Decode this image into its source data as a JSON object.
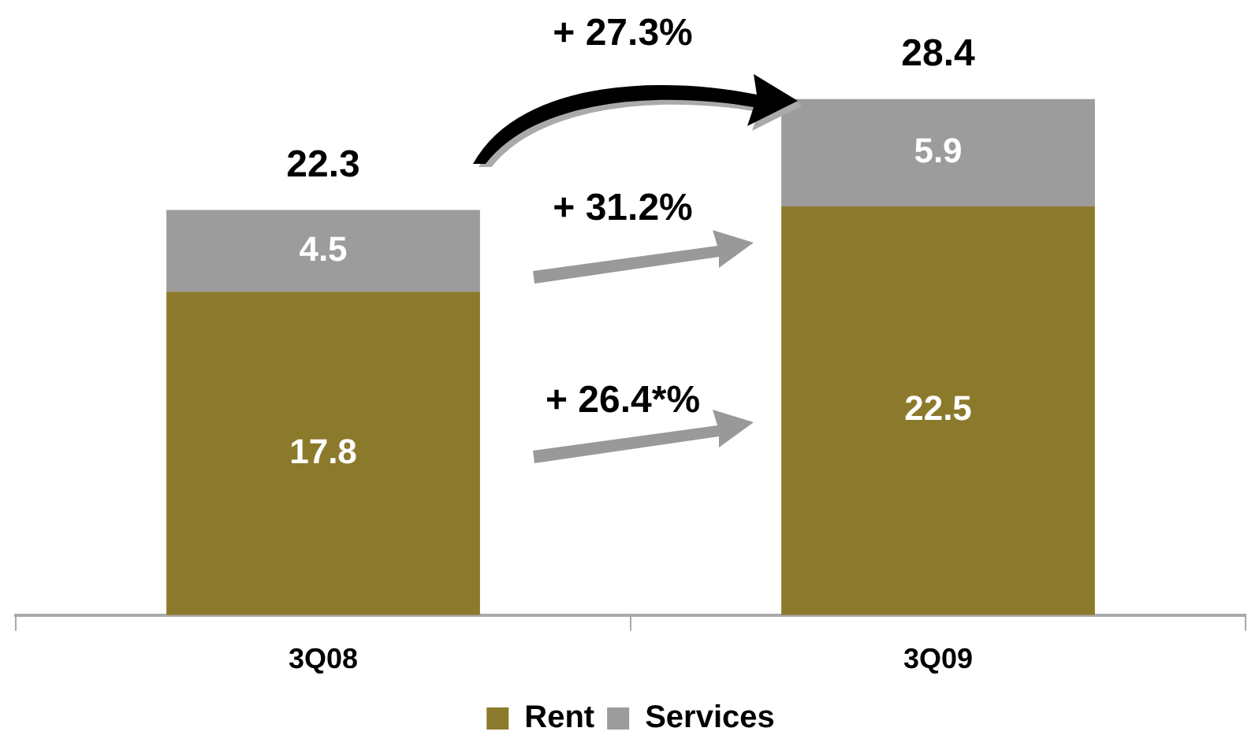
{
  "chart_data": {
    "type": "bar",
    "stacked": true,
    "categories": [
      "3Q08",
      "3Q09"
    ],
    "series": [
      {
        "name": "Rent",
        "color": "#8c7a2c",
        "values": [
          17.8,
          22.5
        ]
      },
      {
        "name": "Services",
        "color": "#9c9c9c",
        "values": [
          4.5,
          5.9
        ]
      }
    ],
    "data_labels": true,
    "totals": [
      "22.3",
      "28.4"
    ],
    "annotations": [
      "+ 27.3%",
      "+ 31.2%",
      "+ 26.4*%"
    ],
    "legend": "bottom",
    "grid": false
  }
}
